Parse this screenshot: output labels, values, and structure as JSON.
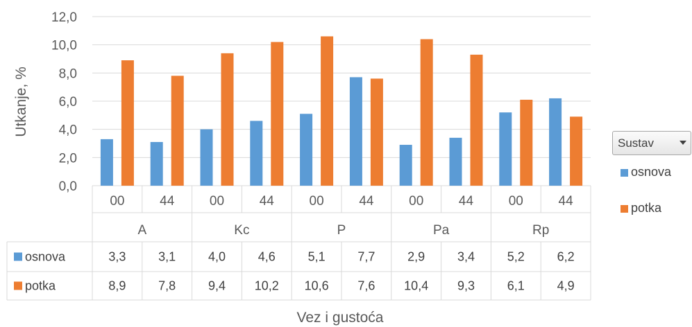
{
  "chart_data": {
    "type": "bar",
    "ylabel": "Utkanje, %",
    "xlabel": "Vez i gustoća",
    "ylim": [
      0,
      12
    ],
    "ytick_step": 2,
    "ytick_labels": [
      "0,0",
      "2,0",
      "4,0",
      "6,0",
      "8,0",
      "10,0",
      "12,0"
    ],
    "grid": true,
    "groups": [
      "A",
      "Kc",
      "P",
      "Pa",
      "Rp"
    ],
    "subcategories": [
      "00",
      "44",
      "00",
      "44",
      "00",
      "44",
      "00",
      "44",
      "00",
      "44"
    ],
    "series": [
      {
        "name": "osnova",
        "color": "#5b9bd5",
        "values": [
          3.3,
          3.1,
          4.0,
          4.6,
          5.1,
          7.7,
          2.9,
          3.4,
          5.2,
          6.2
        ],
        "labels": [
          "3,3",
          "3,1",
          "4,0",
          "4,6",
          "5,1",
          "7,7",
          "2,9",
          "3,4",
          "5,2",
          "6,2"
        ]
      },
      {
        "name": "potka",
        "color": "#ed7d31",
        "values": [
          8.9,
          7.8,
          9.4,
          10.2,
          10.6,
          7.6,
          10.4,
          9.3,
          6.1,
          4.9
        ],
        "labels": [
          "8,9",
          "7,8",
          "9,4",
          "10,2",
          "10,6",
          "7,6",
          "10,4",
          "9,3",
          "6,1",
          "4,9"
        ]
      }
    ],
    "legend": {
      "position": "right",
      "filter_label": "Sustav"
    }
  }
}
